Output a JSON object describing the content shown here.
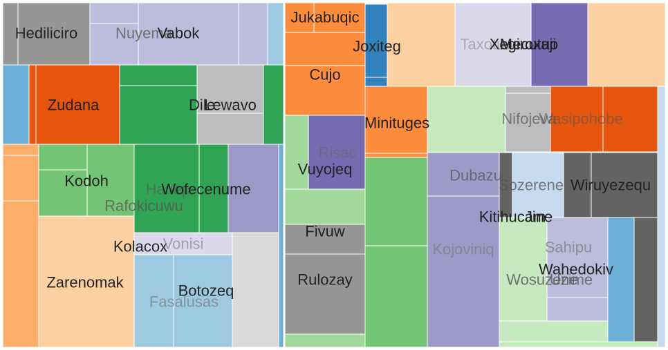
{
  "chart_data": {
    "type": "treemap",
    "title": "",
    "labels": [
      {
        "text": "Hediliciro",
        "value": 16,
        "color": "#969696"
      },
      {
        "text": "Nuyema",
        "value": 14,
        "color": "#bcbddc"
      },
      {
        "text": "Vabok",
        "value": 22,
        "color": "#bcbddc"
      },
      {
        "text": "Zudana",
        "value": 14,
        "color": "#e6550d"
      },
      {
        "text": "Dile",
        "value": 14,
        "color": "#31a354"
      },
      {
        "text": "Lewavo",
        "value": 18,
        "color": "#bdbdbd"
      },
      {
        "text": "Kodoh",
        "value": 10,
        "color": "#74c476"
      },
      {
        "text": "Hanep",
        "value": 10,
        "color": "#31a354"
      },
      {
        "text": "Wofecenume",
        "value": 14,
        "color": "#31a354"
      },
      {
        "text": "Rafokicuwu",
        "value": 10,
        "color": "#74c476"
      },
      {
        "text": "Kolacox",
        "value": 12,
        "color": "#fdd0a2"
      },
      {
        "text": "Vonisi",
        "value": 6,
        "color": "#dadaeb"
      },
      {
        "text": "Zarenomak",
        "value": 26,
        "color": "#fdd0a2"
      },
      {
        "text": "Fasalusas",
        "value": 10,
        "color": "#9ecae1"
      },
      {
        "text": "Botozeq",
        "value": 14,
        "color": "#9ecae1"
      },
      {
        "text": "Jukabuqic",
        "value": 8,
        "color": "#fd8d3c"
      },
      {
        "text": "Joxiteg",
        "value": 8,
        "color": "#3182bd"
      },
      {
        "text": "Cujo",
        "value": 12,
        "color": "#fd8d3c"
      },
      {
        "text": "Risac",
        "value": 8,
        "color": "#756bb1"
      },
      {
        "text": "Vuyojeq",
        "value": 8,
        "color": "#a1d99b"
      },
      {
        "text": "Fivuw",
        "value": 6,
        "color": "#969696"
      },
      {
        "text": "Rulozay",
        "value": 14,
        "color": "#969696"
      },
      {
        "text": "Taxotuwa",
        "value": 14,
        "color": "#dadaeb"
      },
      {
        "text": "Xegiroxaji",
        "value": 10,
        "color": "#756bb1"
      },
      {
        "text": "Mecutuo",
        "value": 10,
        "color": "#756bb1"
      },
      {
        "text": "Minituges",
        "value": 10,
        "color": "#fd8d3c"
      },
      {
        "text": "Nifojeva",
        "value": 8,
        "color": "#bdbdbd"
      },
      {
        "text": "Wasipohobe",
        "value": 12,
        "color": "#e6550d"
      },
      {
        "text": "Dubazu",
        "value": 10,
        "color": "#9e9ac8"
      },
      {
        "text": "Sozerene",
        "value": 8,
        "color": "#c6dbef"
      },
      {
        "text": "Wiruyezequ",
        "value": 12,
        "color": "#636363"
      },
      {
        "text": "Kitihucam",
        "value": 8,
        "color": "#9e9ac8"
      },
      {
        "text": "Jine",
        "value": 6,
        "color": "#c6dbef"
      },
      {
        "text": "Kojoviniq",
        "value": 14,
        "color": "#9e9ac8"
      },
      {
        "text": "Sahipu",
        "value": 8,
        "color": "#bcbddc"
      },
      {
        "text": "Wahedokiv",
        "value": 8,
        "color": "#bcbddc"
      },
      {
        "text": "Wosuzene",
        "value": 10,
        "color": "#c7e9c0"
      },
      {
        "text": "Uzime",
        "value": 6,
        "color": "#bcbddc"
      }
    ]
  }
}
